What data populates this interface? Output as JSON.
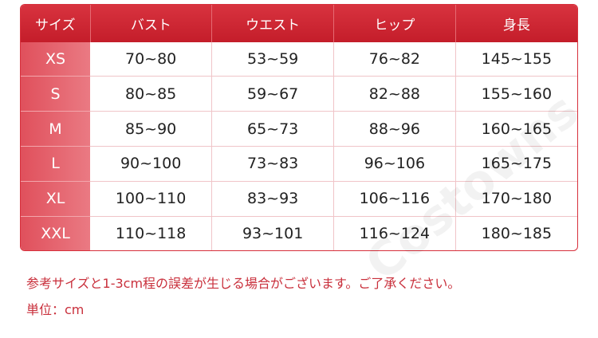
{
  "table": {
    "header": [
      "サイズ",
      "バスト",
      "ウエスト",
      "ヒップ",
      "身長"
    ],
    "rows": [
      [
        "XS",
        "70~80",
        "53~59",
        "76~82",
        "145~155"
      ],
      [
        "S",
        "80~85",
        "59~67",
        "82~88",
        "155~160"
      ],
      [
        "M",
        "85~90",
        "65~73",
        "88~96",
        "160~165"
      ],
      [
        "L",
        "90~100",
        "73~83",
        "96~106",
        "165~175"
      ],
      [
        "XL",
        "100~110",
        "83~93",
        "106~116",
        "170~180"
      ],
      [
        "XXL",
        "110~118",
        "93~101",
        "116~124",
        "180~185"
      ]
    ]
  },
  "notes": [
    "参考サイズと1-3cm程の誤差が生じる場合がございます。ご了承ください。",
    "単位：cm"
  ],
  "watermark": "Costowns"
}
